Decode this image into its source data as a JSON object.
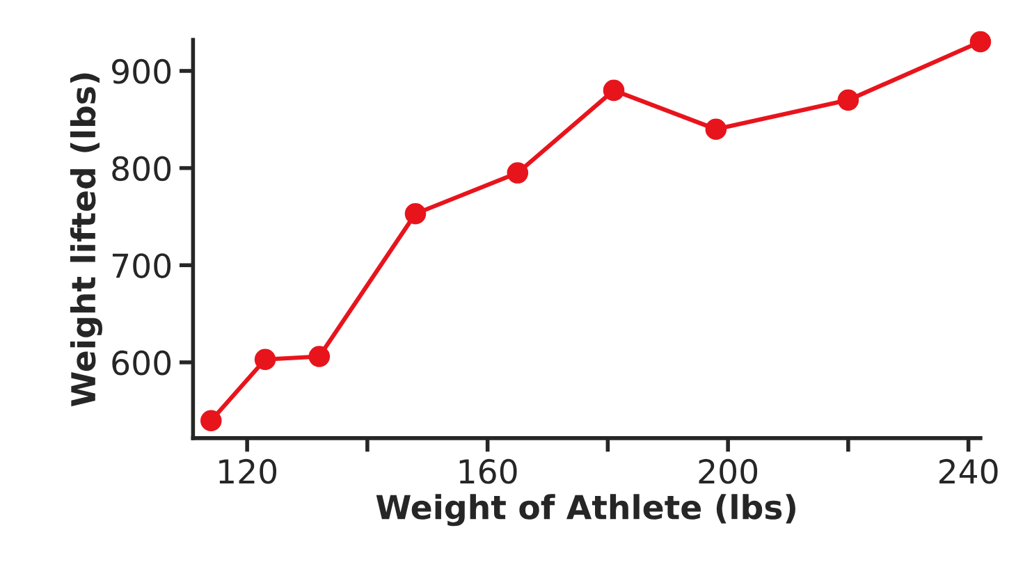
{
  "chart_data": {
    "type": "line",
    "xlabel": "Weight of Athlete (lbs)",
    "ylabel": "Weight lifted (lbs)",
    "x": [
      114,
      123,
      132,
      148,
      165,
      181,
      198,
      220,
      242
    ],
    "series": [
      {
        "color": "#e8141c",
        "values": [
          540,
          603,
          606,
          753,
          795,
          880,
          840,
          870,
          930
        ]
      }
    ],
    "xlim": [
      111,
      242
    ],
    "ylim": [
      522,
      932
    ],
    "xticks": [
      120,
      {
        "value": 140,
        "label": null
      },
      160,
      {
        "value": 180,
        "label": null
      },
      200,
      {
        "value": 220,
        "label": null
      },
      240
    ],
    "yticks": [
      600,
      700,
      800,
      900
    ],
    "marker": "circle",
    "line_style": "solid",
    "grid": false,
    "legend": false
  }
}
